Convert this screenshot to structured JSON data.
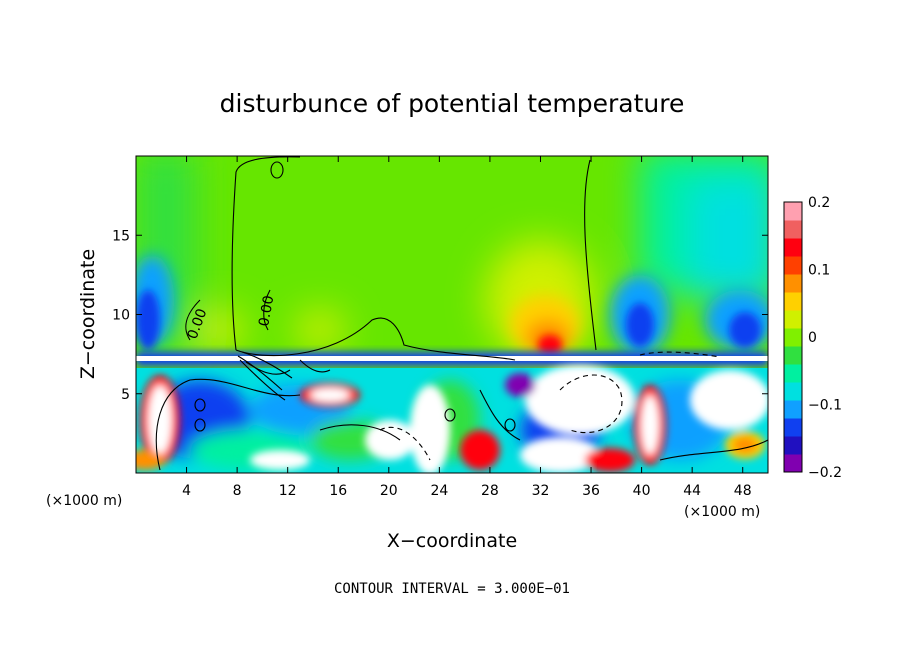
{
  "chart_data": {
    "type": "heatmap",
    "title": "disturbunce of potential temperature",
    "xlabel": "X−coordinate",
    "ylabel": "Z−coordinate",
    "x_unit": "(×1000 m)",
    "y_unit": "(×1000 m)",
    "xlim": [
      0,
      50
    ],
    "ylim": [
      0,
      20
    ],
    "x_ticks": [
      4,
      8,
      12,
      16,
      20,
      24,
      28,
      32,
      36,
      40,
      44,
      48
    ],
    "y_ticks": [
      5,
      10,
      15
    ],
    "colorbar": {
      "ticks": [
        0.2,
        0.1,
        0,
        -0.1,
        -0.2
      ],
      "tick_labels": [
        "0.2",
        "0.1",
        "0",
        "−0.1",
        "−0.2"
      ],
      "range": [
        -0.2,
        0.2
      ],
      "colors": [
        "#8000b0",
        "#2010c0",
        "#1040f0",
        "#10a0ff",
        "#00e0e0",
        "#00f0a0",
        "#30e040",
        "#80f000",
        "#d0f000",
        "#ffd000",
        "#ff9000",
        "#ff4000",
        "#ff0010",
        "#f06060",
        "#ffa0b0"
      ]
    },
    "contour_labels": [
      "0.00",
      "0.00"
    ],
    "contour_interval_text": "CONTOUR INTERVAL = 3.000E−01"
  }
}
